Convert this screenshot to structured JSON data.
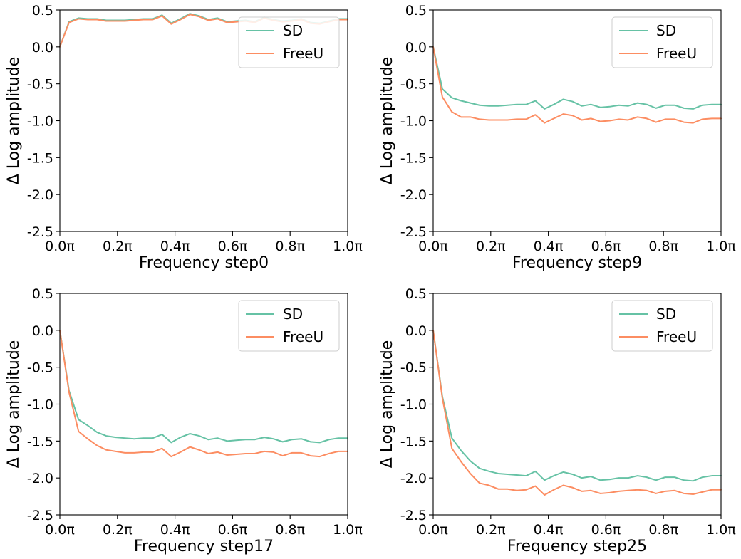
{
  "colors": {
    "sd": "#66c2a5",
    "freeu": "#fc8d62"
  },
  "chart_data": [
    {
      "type": "line",
      "xlabel": "Frequency step0",
      "ylabel": "Δ Log amplitude",
      "ylim": [
        -2.5,
        0.5
      ],
      "xlim": [
        0.0,
        1.0
      ],
      "yticks": [
        "0.5",
        "0.0",
        "-0.5",
        "-1.0",
        "-1.5",
        "-2.0",
        "-2.5"
      ],
      "xticks": [
        "0.0π",
        "0.2π",
        "0.4π",
        "0.6π",
        "0.8π",
        "1.0π"
      ],
      "legend": "top-right",
      "x": [
        0.0,
        0.032,
        0.065,
        0.097,
        0.129,
        0.161,
        0.194,
        0.226,
        0.258,
        0.29,
        0.323,
        0.355,
        0.387,
        0.419,
        0.452,
        0.484,
        0.516,
        0.548,
        0.581,
        0.613,
        0.645,
        0.677,
        0.71,
        0.742,
        0.774,
        0.806,
        0.839,
        0.871,
        0.903,
        0.935,
        0.968,
        1.0
      ],
      "series": [
        {
          "name": "SD",
          "values": [
            0.0,
            0.34,
            0.39,
            0.38,
            0.38,
            0.36,
            0.36,
            0.36,
            0.37,
            0.38,
            0.38,
            0.43,
            0.32,
            0.38,
            0.45,
            0.42,
            0.37,
            0.39,
            0.34,
            0.35,
            0.36,
            0.34,
            0.4,
            0.37,
            0.35,
            0.36,
            0.38,
            0.33,
            0.32,
            0.35,
            0.38,
            0.38
          ]
        },
        {
          "name": "FreeU",
          "values": [
            0.0,
            0.33,
            0.38,
            0.37,
            0.37,
            0.35,
            0.35,
            0.35,
            0.36,
            0.37,
            0.37,
            0.42,
            0.31,
            0.37,
            0.44,
            0.41,
            0.36,
            0.38,
            0.33,
            0.34,
            0.35,
            0.33,
            0.39,
            0.36,
            0.34,
            0.35,
            0.37,
            0.32,
            0.31,
            0.34,
            0.37,
            0.37
          ]
        }
      ]
    },
    {
      "type": "line",
      "xlabel": "Frequency step9",
      "ylabel": "Δ Log amplitude",
      "ylim": [
        -2.5,
        0.5
      ],
      "xlim": [
        0.0,
        1.0
      ],
      "yticks": [
        "0.5",
        "0.0",
        "-0.5",
        "-1.0",
        "-1.5",
        "-2.0",
        "-2.5"
      ],
      "xticks": [
        "0.0π",
        "0.2π",
        "0.4π",
        "0.6π",
        "0.8π",
        "1.0π"
      ],
      "legend": "top-right",
      "x": [
        0.0,
        0.032,
        0.065,
        0.097,
        0.129,
        0.161,
        0.194,
        0.226,
        0.258,
        0.29,
        0.323,
        0.355,
        0.387,
        0.419,
        0.452,
        0.484,
        0.516,
        0.548,
        0.581,
        0.613,
        0.645,
        0.677,
        0.71,
        0.742,
        0.774,
        0.806,
        0.839,
        0.871,
        0.903,
        0.935,
        0.968,
        1.0
      ],
      "series": [
        {
          "name": "SD",
          "values": [
            0.0,
            -0.57,
            -0.69,
            -0.73,
            -0.76,
            -0.79,
            -0.8,
            -0.8,
            -0.79,
            -0.78,
            -0.78,
            -0.73,
            -0.84,
            -0.78,
            -0.71,
            -0.74,
            -0.8,
            -0.78,
            -0.82,
            -0.81,
            -0.79,
            -0.8,
            -0.76,
            -0.78,
            -0.83,
            -0.79,
            -0.79,
            -0.83,
            -0.84,
            -0.79,
            -0.78,
            -0.78
          ]
        },
        {
          "name": "FreeU",
          "values": [
            0.0,
            -0.68,
            -0.88,
            -0.95,
            -0.95,
            -0.98,
            -0.99,
            -0.99,
            -0.99,
            -0.98,
            -0.98,
            -0.92,
            -1.03,
            -0.97,
            -0.91,
            -0.93,
            -0.99,
            -0.97,
            -1.01,
            -1.0,
            -0.98,
            -0.99,
            -0.95,
            -0.97,
            -1.02,
            -0.98,
            -0.98,
            -1.02,
            -1.03,
            -0.98,
            -0.97,
            -0.97
          ]
        }
      ]
    },
    {
      "type": "line",
      "xlabel": "Frequency step17",
      "ylabel": "Δ Log amplitude",
      "ylim": [
        -2.5,
        0.5
      ],
      "xlim": [
        0.0,
        1.0
      ],
      "yticks": [
        "0.5",
        "0.0",
        "-0.5",
        "-1.0",
        "-1.5",
        "-2.0",
        "-2.5"
      ],
      "xticks": [
        "0.0π",
        "0.2π",
        "0.4π",
        "0.6π",
        "0.8π",
        "1.0π"
      ],
      "legend": "top-right",
      "x": [
        0.0,
        0.032,
        0.065,
        0.097,
        0.129,
        0.161,
        0.194,
        0.226,
        0.258,
        0.29,
        0.323,
        0.355,
        0.387,
        0.419,
        0.452,
        0.484,
        0.516,
        0.548,
        0.581,
        0.613,
        0.645,
        0.677,
        0.71,
        0.742,
        0.774,
        0.806,
        0.839,
        0.871,
        0.903,
        0.935,
        0.968,
        1.0
      ],
      "series": [
        {
          "name": "SD",
          "values": [
            0.0,
            -0.82,
            -1.21,
            -1.29,
            -1.38,
            -1.43,
            -1.45,
            -1.46,
            -1.47,
            -1.46,
            -1.46,
            -1.41,
            -1.52,
            -1.45,
            -1.4,
            -1.43,
            -1.48,
            -1.46,
            -1.5,
            -1.49,
            -1.48,
            -1.48,
            -1.45,
            -1.47,
            -1.51,
            -1.48,
            -1.47,
            -1.51,
            -1.52,
            -1.48,
            -1.46,
            -1.46
          ]
        },
        {
          "name": "FreeU",
          "values": [
            0.0,
            -0.84,
            -1.37,
            -1.47,
            -1.56,
            -1.62,
            -1.64,
            -1.66,
            -1.66,
            -1.65,
            -1.65,
            -1.6,
            -1.71,
            -1.65,
            -1.58,
            -1.62,
            -1.67,
            -1.65,
            -1.69,
            -1.68,
            -1.67,
            -1.67,
            -1.64,
            -1.65,
            -1.7,
            -1.66,
            -1.66,
            -1.7,
            -1.71,
            -1.67,
            -1.64,
            -1.64
          ]
        }
      ]
    },
    {
      "type": "line",
      "xlabel": "Frequency step25",
      "ylabel": "Δ Log amplitude",
      "ylim": [
        -2.5,
        0.5
      ],
      "xlim": [
        0.0,
        1.0
      ],
      "yticks": [
        "0.5",
        "0.0",
        "-0.5",
        "-1.0",
        "-1.5",
        "-2.0",
        "-2.5"
      ],
      "xticks": [
        "0.0π",
        "0.2π",
        "0.4π",
        "0.6π",
        "0.8π",
        "1.0π"
      ],
      "legend": "top-right",
      "x": [
        0.0,
        0.032,
        0.065,
        0.097,
        0.129,
        0.161,
        0.194,
        0.226,
        0.258,
        0.29,
        0.323,
        0.355,
        0.387,
        0.419,
        0.452,
        0.484,
        0.516,
        0.548,
        0.581,
        0.613,
        0.645,
        0.677,
        0.71,
        0.742,
        0.774,
        0.806,
        0.839,
        0.871,
        0.903,
        0.935,
        0.968,
        1.0
      ],
      "series": [
        {
          "name": "SD",
          "values": [
            0.0,
            -0.9,
            -1.46,
            -1.63,
            -1.77,
            -1.87,
            -1.91,
            -1.94,
            -1.95,
            -1.96,
            -1.97,
            -1.91,
            -2.03,
            -1.97,
            -1.92,
            -1.95,
            -2.0,
            -1.98,
            -2.03,
            -2.02,
            -2.0,
            -2.0,
            -1.97,
            -1.99,
            -2.03,
            -1.99,
            -1.99,
            -2.03,
            -2.04,
            -1.99,
            -1.97,
            -1.97
          ]
        },
        {
          "name": "FreeU",
          "values": [
            0.0,
            -0.92,
            -1.6,
            -1.78,
            -1.94,
            -2.07,
            -2.1,
            -2.15,
            -2.15,
            -2.17,
            -2.16,
            -2.11,
            -2.23,
            -2.16,
            -2.1,
            -2.13,
            -2.18,
            -2.17,
            -2.21,
            -2.2,
            -2.18,
            -2.17,
            -2.16,
            -2.17,
            -2.21,
            -2.18,
            -2.17,
            -2.21,
            -2.22,
            -2.19,
            -2.16,
            -2.16
          ]
        }
      ]
    }
  ]
}
